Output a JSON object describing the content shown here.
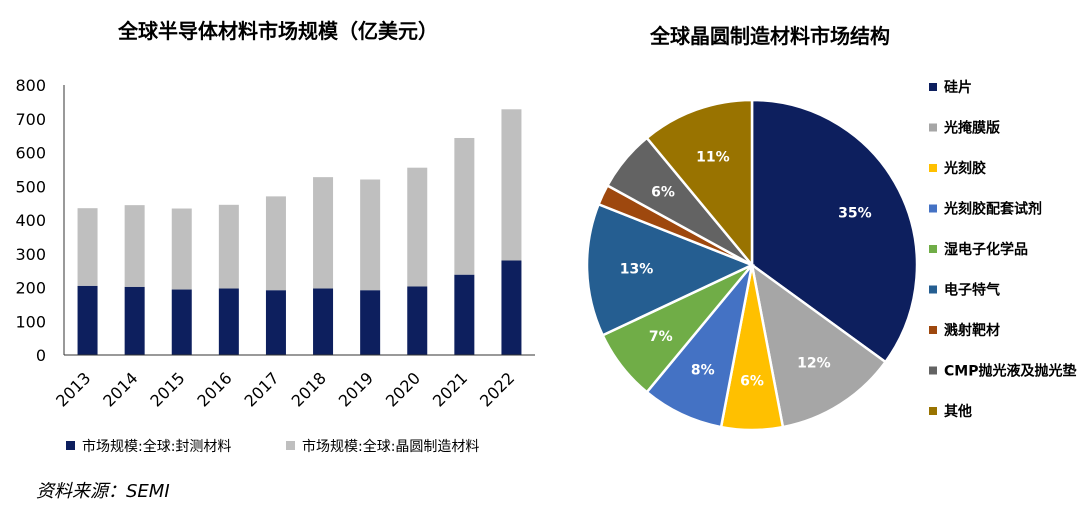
{
  "chart_data": [
    {
      "type": "bar",
      "stacked": true,
      "title": "全球半导体材料市场规模（亿美元）",
      "categories": [
        "2013",
        "2014",
        "2015",
        "2016",
        "2017",
        "2018",
        "2019",
        "2020",
        "2021",
        "2022"
      ],
      "series": [
        {
          "name": "市场规模:全球:封测材料",
          "color": "#0d1f5e",
          "values": [
            205,
            202,
            194,
            197,
            192,
            197,
            192,
            203,
            238,
            280
          ]
        },
        {
          "name": "市场规模:全球:晶圆制造材料",
          "color": "#bfbfbf",
          "values": [
            230,
            242,
            240,
            248,
            278,
            330,
            328,
            352,
            405,
            448
          ]
        }
      ],
      "ylim": [
        0,
        800
      ],
      "yticks": [
        "0",
        "100",
        "200",
        "300",
        "400",
        "500",
        "600",
        "700",
        "800"
      ],
      "grid": false,
      "legend": "bottom"
    },
    {
      "type": "pie",
      "title": "全球晶圆制造材料市场结构",
      "slices": [
        {
          "name": "硅片",
          "value": 35,
          "label": "35%",
          "color": "#0d1f5e",
          "label_color": "#ffffff"
        },
        {
          "name": "光掩膜版",
          "value": 12,
          "label": "12%",
          "color": "#a6a6a6",
          "label_color": "#ffffff"
        },
        {
          "name": "光刻胶",
          "value": 6,
          "label": "6%",
          "color": "#ffc000",
          "label_color": "#ffffff"
        },
        {
          "name": "光刻胶配套试剂",
          "value": 8,
          "label": "8%",
          "color": "#4472c4",
          "label_color": "#ffffff"
        },
        {
          "name": "湿电子化学品",
          "value": 7,
          "label": "7%",
          "color": "#70ad47",
          "label_color": "#ffffff"
        },
        {
          "name": "电子特气",
          "value": 13,
          "label": "13%",
          "color": "#255e91",
          "label_color": "#ffffff"
        },
        {
          "name": "溅射靶材",
          "value": 2,
          "label": "",
          "color": "#9e480e",
          "label_color": "#ffffff"
        },
        {
          "name": "CMP抛光液及抛光垫",
          "value": 6,
          "label": "6%",
          "color": "#636363",
          "label_color": "#ffffff"
        },
        {
          "name": "其他",
          "value": 11,
          "label": "11%",
          "color": "#997300",
          "label_color": "#ffffff"
        }
      ],
      "legend": "right"
    }
  ],
  "source_note": "资料来源：SEMI"
}
